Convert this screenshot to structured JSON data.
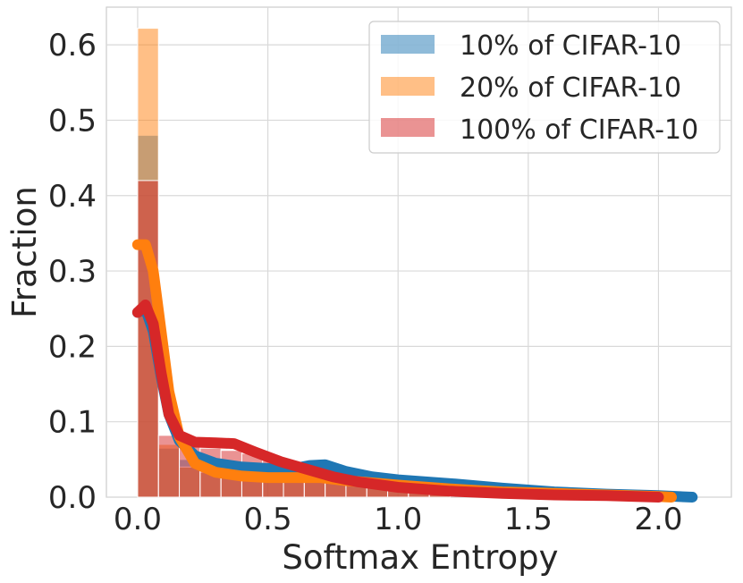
{
  "chart_data": {
    "type": "histogram",
    "xlabel": "Softmax Entropy",
    "ylabel": "Fraction",
    "xlim": [
      -0.12,
      2.28
    ],
    "ylim": [
      0.0,
      0.65
    ],
    "grid": true,
    "legend_position": "top-right",
    "x_ticks": [
      {
        "value": 0.0,
        "label": "0.0"
      },
      {
        "value": 0.5,
        "label": "0.5"
      },
      {
        "value": 1.0,
        "label": "1.0"
      },
      {
        "value": 1.5,
        "label": "1.5"
      },
      {
        "value": 2.0,
        "label": "2.0"
      }
    ],
    "y_ticks": [
      {
        "value": 0.0,
        "label": "0.0"
      },
      {
        "value": 0.1,
        "label": "0.1"
      },
      {
        "value": 0.2,
        "label": "0.2"
      },
      {
        "value": 0.3,
        "label": "0.3"
      },
      {
        "value": 0.4,
        "label": "0.4"
      },
      {
        "value": 0.5,
        "label": "0.5"
      },
      {
        "value": 0.6,
        "label": "0.6"
      }
    ],
    "bin_start": 0.0,
    "bin_width": 0.08,
    "series": [
      {
        "name": "10% of CIFAR-10",
        "color": "#1f77b4",
        "bar_values": [
          0.48,
          0.065,
          0.05,
          0.045,
          0.04,
          0.038,
          0.036,
          0.036,
          0.034,
          0.032,
          0.03,
          0.026,
          0.022,
          0.018,
          0.014
        ],
        "kde": [
          [
            0.0,
            0.245
          ],
          [
            0.03,
            0.25
          ],
          [
            0.06,
            0.22
          ],
          [
            0.09,
            0.16
          ],
          [
            0.12,
            0.11
          ],
          [
            0.16,
            0.075
          ],
          [
            0.22,
            0.055
          ],
          [
            0.3,
            0.045
          ],
          [
            0.4,
            0.04
          ],
          [
            0.5,
            0.038
          ],
          [
            0.6,
            0.038
          ],
          [
            0.66,
            0.042
          ],
          [
            0.72,
            0.043
          ],
          [
            0.8,
            0.034
          ],
          [
            0.9,
            0.027
          ],
          [
            1.0,
            0.023
          ],
          [
            1.2,
            0.018
          ],
          [
            1.4,
            0.012
          ],
          [
            1.6,
            0.007
          ],
          [
            1.8,
            0.004
          ],
          [
            2.0,
            0.002
          ],
          [
            2.13,
            0.0
          ]
        ]
      },
      {
        "name": "20% of CIFAR-10",
        "color": "#ff7f0e",
        "bar_values": [
          0.622,
          0.07,
          0.04,
          0.033,
          0.03,
          0.028,
          0.027,
          0.027,
          0.025,
          0.022,
          0.018,
          0.015,
          0.012,
          0.009,
          0.006
        ],
        "kde": [
          [
            0.0,
            0.335
          ],
          [
            0.03,
            0.335
          ],
          [
            0.06,
            0.3
          ],
          [
            0.09,
            0.22
          ],
          [
            0.12,
            0.14
          ],
          [
            0.16,
            0.08
          ],
          [
            0.22,
            0.045
          ],
          [
            0.3,
            0.033
          ],
          [
            0.4,
            0.028
          ],
          [
            0.5,
            0.026
          ],
          [
            0.6,
            0.026
          ],
          [
            0.7,
            0.026
          ],
          [
            0.8,
            0.022
          ],
          [
            0.9,
            0.019
          ],
          [
            1.0,
            0.016
          ],
          [
            1.2,
            0.011
          ],
          [
            1.4,
            0.007
          ],
          [
            1.6,
            0.005
          ],
          [
            1.8,
            0.003
          ],
          [
            2.0,
            0.001
          ],
          [
            2.05,
            0.0
          ]
        ]
      },
      {
        "name": "100% of CIFAR-10",
        "color": "#d62728",
        "bar_values": [
          0.42,
          0.082,
          0.068,
          0.065,
          0.062,
          0.058,
          0.05,
          0.045,
          0.038,
          0.03,
          0.025,
          0.02,
          0.016,
          0.012,
          0.008
        ],
        "kde": [
          [
            0.0,
            0.245
          ],
          [
            0.03,
            0.255
          ],
          [
            0.06,
            0.23
          ],
          [
            0.09,
            0.165
          ],
          [
            0.12,
            0.11
          ],
          [
            0.16,
            0.082
          ],
          [
            0.22,
            0.073
          ],
          [
            0.3,
            0.072
          ],
          [
            0.37,
            0.071
          ],
          [
            0.45,
            0.06
          ],
          [
            0.55,
            0.047
          ],
          [
            0.65,
            0.037
          ],
          [
            0.75,
            0.027
          ],
          [
            0.85,
            0.02
          ],
          [
            1.0,
            0.013
          ],
          [
            1.2,
            0.008
          ],
          [
            1.4,
            0.005
          ],
          [
            1.6,
            0.003
          ],
          [
            1.8,
            0.002
          ],
          [
            2.0,
            0.0
          ]
        ]
      }
    ]
  }
}
